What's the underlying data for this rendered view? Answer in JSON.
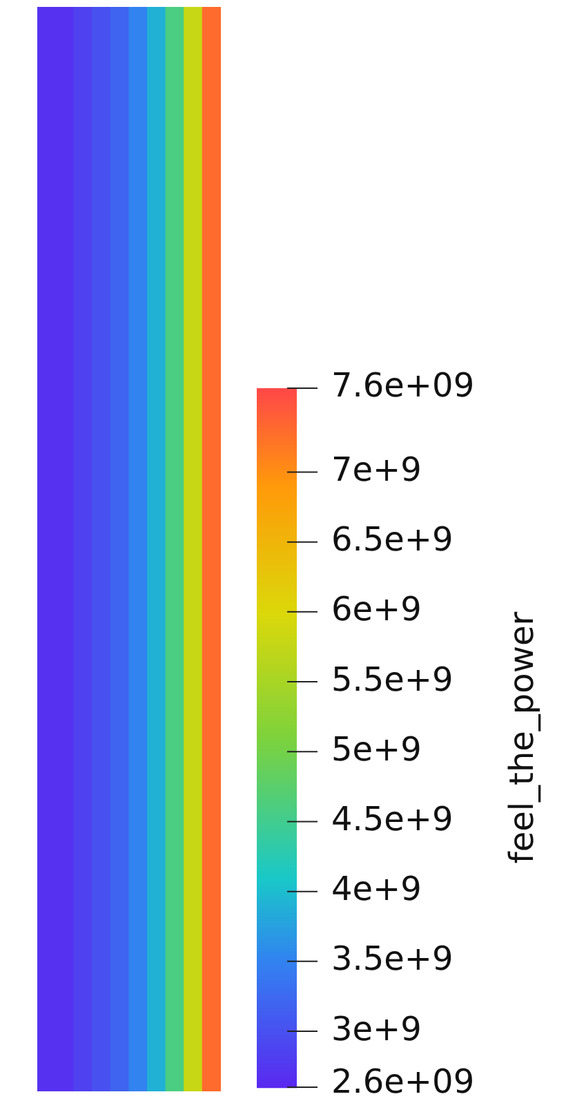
{
  "chart_data": {
    "type": "heatmap",
    "categories": [
      null,
      null,
      null,
      null,
      null,
      null,
      null,
      null,
      null,
      null
    ],
    "y_categories": [
      null
    ],
    "cells": [
      [
        2700000000,
        2700000000,
        2850000000,
        3000000000,
        3200000000,
        3500000000,
        3900000000,
        4600000000,
        5800000000,
        7300000000
      ]
    ],
    "clim": [
      2600000000,
      7600000000
    ],
    "cticks": [
      {
        "value": 2600000000,
        "label": "2.6e+09"
      },
      {
        "value": 3000000000,
        "label": "3e+9"
      },
      {
        "value": 3500000000,
        "label": "3.5e+9"
      },
      {
        "value": 4000000000,
        "label": "4e+9"
      },
      {
        "value": 4500000000,
        "label": "4.5e+9"
      },
      {
        "value": 5000000000,
        "label": "5e+9"
      },
      {
        "value": 5500000000,
        "label": "5.5e+9"
      },
      {
        "value": 6000000000,
        "label": "6e+9"
      },
      {
        "value": 6500000000,
        "label": "6.5e+9"
      },
      {
        "value": 7000000000,
        "label": "7e+9"
      },
      {
        "value": 7600000000,
        "label": "7.6e+09"
      }
    ],
    "clabel": "feel_the_power"
  }
}
